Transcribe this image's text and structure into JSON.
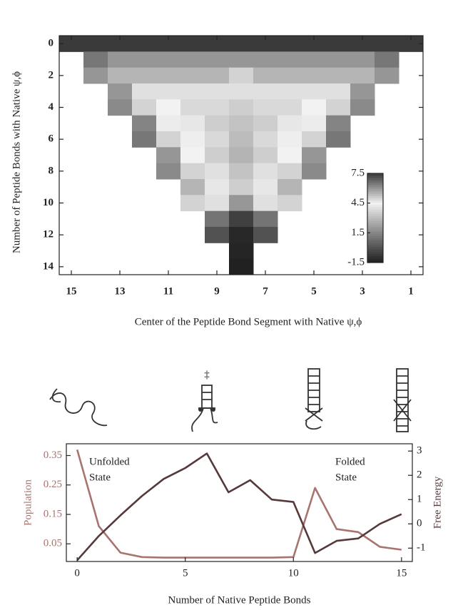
{
  "chart_data": [
    {
      "type": "heatmap",
      "xlabel": "Center of the Peptide Bond Segment with Native ψ,ϕ",
      "ylabel": "Number of Peptide Bonds with Native ψ,ϕ",
      "x": [
        15,
        14,
        13,
        12,
        11,
        10,
        9,
        8,
        7,
        6,
        5,
        4,
        3,
        2,
        1
      ],
      "y": [
        0,
        1,
        2,
        3,
        4,
        5,
        6,
        7,
        8,
        9,
        10,
        11,
        12,
        13,
        14
      ],
      "z": [
        [
          7.5,
          7.5,
          7.5,
          7.5,
          7.5,
          7.5,
          7.5,
          7.5,
          7.5,
          7.5,
          7.5,
          7.5,
          7.5,
          7.5,
          7.5
        ],
        [
          null,
          6.5,
          6,
          6,
          6,
          6,
          6,
          6,
          6,
          6,
          6,
          6,
          6,
          6.5,
          null
        ],
        [
          null,
          6,
          5.5,
          5.5,
          5.5,
          5.5,
          5.5,
          5,
          5.5,
          5.5,
          5.5,
          5.5,
          5.5,
          6,
          null
        ],
        [
          null,
          null,
          6,
          4.8,
          4.8,
          4.8,
          4.8,
          4,
          4.8,
          4.8,
          4.8,
          4.8,
          6,
          null,
          null
        ],
        [
          null,
          null,
          6.2,
          5,
          4.5,
          3.8,
          3.8,
          3.5,
          3.8,
          3.8,
          4.5,
          5,
          6.2,
          null,
          null
        ],
        [
          null,
          null,
          null,
          6.3,
          4.6,
          4.2,
          3.5,
          3.2,
          3.5,
          4.2,
          4.6,
          6.3,
          null,
          null,
          null
        ],
        [
          null,
          null,
          null,
          6.5,
          5,
          4.4,
          3.8,
          3,
          3.8,
          4.4,
          5,
          6.5,
          null,
          null,
          null
        ],
        [
          null,
          null,
          null,
          null,
          6,
          4.5,
          3.5,
          2.8,
          3.5,
          4.5,
          6,
          null,
          null,
          null,
          null
        ],
        [
          null,
          null,
          null,
          null,
          6.2,
          5,
          4,
          3.2,
          4,
          5,
          6.2,
          null,
          null,
          null,
          null
        ],
        [
          null,
          null,
          null,
          null,
          null,
          5.5,
          4.2,
          3.5,
          4.2,
          5.5,
          null,
          null,
          null,
          null,
          null
        ],
        [
          null,
          null,
          null,
          null,
          null,
          5,
          4.8,
          2,
          4.8,
          5,
          null,
          null,
          null,
          null,
          null
        ],
        [
          null,
          null,
          null,
          null,
          null,
          null,
          1,
          -0.5,
          1,
          null,
          null,
          null,
          null,
          null,
          null
        ],
        [
          null,
          null,
          null,
          null,
          null,
          null,
          0,
          -1.2,
          0,
          null,
          null,
          null,
          null,
          null,
          null
        ],
        [
          null,
          null,
          null,
          null,
          null,
          null,
          null,
          -1.3,
          null,
          null,
          null,
          null,
          null,
          null,
          null
        ],
        [
          null,
          null,
          null,
          null,
          null,
          null,
          null,
          -1.4,
          null,
          null,
          null,
          null,
          null,
          null,
          null
        ]
      ],
      "xlim": [
        15.5,
        0.5
      ],
      "xticks": [
        15,
        13,
        11,
        9,
        7,
        5,
        3,
        1
      ],
      "ylim": [
        -0.5,
        14.5
      ],
      "yticks": [
        0,
        2,
        4,
        6,
        8,
        10,
        12,
        14
      ],
      "zlim": [
        -1.5,
        7.5
      ],
      "colorbar_ticks": [
        -1.5,
        1.5,
        4.5,
        7.5
      ],
      "colorscale": [
        "#1e1e1e",
        "#858585",
        "#f2f2f2",
        "#3a3a3a"
      ]
    },
    {
      "type": "line",
      "xlabel": "Number of Native Peptide Bonds",
      "ylabel": "Population",
      "y2label": "Free Energy",
      "x": [
        0,
        1,
        2,
        3,
        4,
        5,
        6,
        7,
        8,
        9,
        10,
        11,
        12,
        13,
        14,
        15
      ],
      "series": [
        {
          "name": "Population",
          "color": "#a87470",
          "values": [
            0.37,
            0.11,
            0.02,
            0.005,
            0.003,
            0.003,
            0.003,
            0.003,
            0.003,
            0.003,
            0.005,
            0.24,
            0.1,
            0.09,
            0.04,
            0.03
          ]
        },
        {
          "name": "Free Energy",
          "color": "#56393b",
          "axis": "y2",
          "values": [
            -1.5,
            -0.5,
            0.35,
            1.15,
            1.85,
            2.3,
            2.9,
            1.3,
            1.8,
            1.0,
            0.9,
            -1.2,
            -0.7,
            -0.6,
            0.0,
            0.4
          ]
        }
      ],
      "xlim": [
        -0.5,
        15.5
      ],
      "xticks": [
        0,
        5,
        10,
        15
      ],
      "ylim": [
        -0.01,
        0.39
      ],
      "yticks": [
        0.05,
        0.15,
        0.25,
        0.35
      ],
      "y2lim": [
        -1.55,
        3.3
      ],
      "y2ticks": [
        -1,
        0,
        1,
        2,
        3
      ],
      "state_labels": [
        [
          "Unfolded",
          "State"
        ],
        [
          "Folded",
          "State"
        ]
      ],
      "transition_mark": "‡"
    }
  ]
}
